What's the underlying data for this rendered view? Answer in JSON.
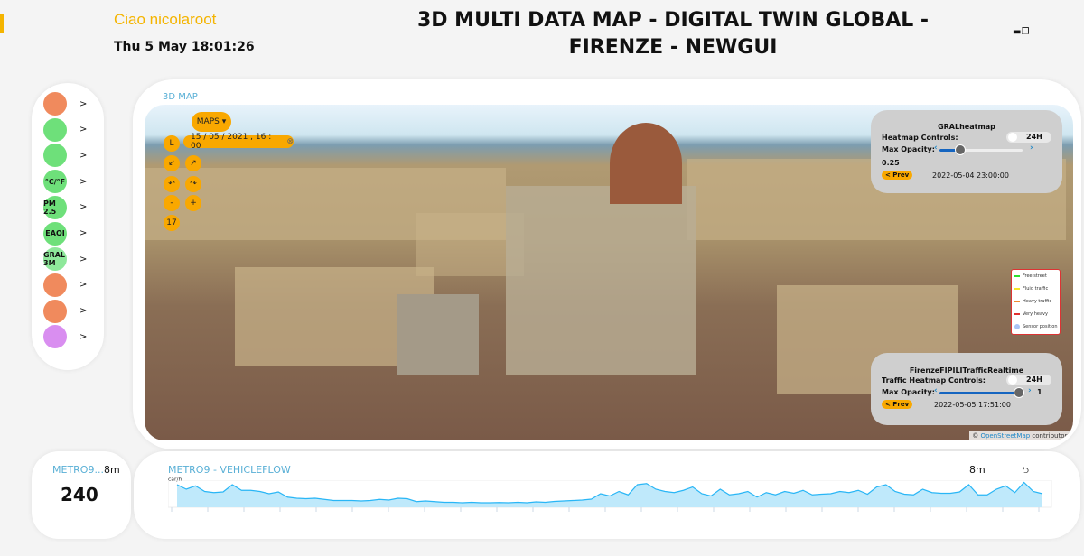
{
  "header": {
    "greeting": "Ciao nicolaroot",
    "datetime": "Thu 5 May 18:01:26",
    "title": "3D MULTI DATA MAP - DIGITAL TWIN GLOBAL - FIRENZE - NEWGUI",
    "window_icons": [
      "window-icon",
      "restore-icon"
    ]
  },
  "sidebar": {
    "items": [
      {
        "icon": "traffic-sensor-icon",
        "color": "#f08a5d",
        "label": ""
      },
      {
        "icon": "weather-station-icon",
        "color": "#6ee07a",
        "label": ""
      },
      {
        "icon": "wind-anemometer-icon",
        "color": "#6ee07a",
        "label": ""
      },
      {
        "icon": "temperature-grid-icon",
        "color": "#6ee07a",
        "label": "°C/°F"
      },
      {
        "icon": "pm25-grid-icon",
        "color": "#6ee07a",
        "label": "PM 2.5"
      },
      {
        "icon": "eaqi-grid-icon",
        "color": "#6ee07a",
        "label": "EAQI"
      },
      {
        "icon": "gral-grid-icon",
        "color": "#8ee89a",
        "label": "GRAL 3M"
      },
      {
        "icon": "road-traffic-icon",
        "color": "#f08a5d",
        "label": ""
      },
      {
        "icon": "road-icon",
        "color": "#f08a5d",
        "label": ""
      },
      {
        "icon": "bike-icon",
        "color": "#d98ef0",
        "label": ""
      }
    ],
    "arrow": ">"
  },
  "map": {
    "label": "3D MAP",
    "maps_button": "MAPS ▾",
    "date_value": "15 / 05 / 2021 , 16 : 00",
    "controls": [
      "L",
      "↙",
      "↗",
      "↶",
      "↷",
      "-",
      "+",
      "17"
    ],
    "gral": {
      "title": "GRALheatmap",
      "controls_label": "Heatmap Controls:",
      "toggle": "24H",
      "opacity_label": "Max Opacity:",
      "opacity": 0.25,
      "opacity_text": "0.25",
      "prev": "< Prev",
      "timestamp": "2022-05-04 23:00:00"
    },
    "traffic": {
      "title": "FirenzeFIPILITrafficRealtime",
      "controls_label": "Traffic Heatmap Controls:",
      "toggle": "24H",
      "opacity_label": "Max Opacity:",
      "opacity": 1,
      "opacity_text": "1",
      "prev": "< Prev",
      "timestamp": "2022-05-05 17:51:00"
    },
    "legend": [
      {
        "label": "Free street",
        "color": "#2ee02e"
      },
      {
        "label": "Fluid traffic",
        "color": "#f5e72a"
      },
      {
        "label": "Heavy traffic",
        "color": "#f08a30"
      },
      {
        "label": "Very heavy",
        "color": "#e03030"
      },
      {
        "label": "Sensor position",
        "color": "#aac4f5"
      }
    ],
    "attribution_prefix": "© ",
    "attribution_link": "OpenStreetMap",
    "attribution_suffix": " contributors"
  },
  "card": {
    "title": "METRO9...",
    "range": "8m",
    "value": "240"
  },
  "chart": {
    "title": "METRO9 - VEHICLEFLOW",
    "unit": "car/h",
    "range": "8m",
    "back_icon": "back-arrow-icon",
    "accent": "#29b6f6"
  },
  "chart_data": {
    "type": "area",
    "ylabel": "car/h",
    "values": [
      300,
      280,
      295,
      270,
      265,
      268,
      300,
      275,
      275,
      270,
      260,
      268,
      245,
      240,
      238,
      240,
      235,
      230,
      230,
      230,
      228,
      230,
      235,
      232,
      240,
      238,
      225,
      228,
      225,
      222,
      222,
      220,
      222,
      220,
      220,
      221,
      220,
      222,
      220,
      224,
      222,
      226,
      228,
      230,
      232,
      236,
      260,
      250,
      270,
      255,
      300,
      305,
      280,
      270,
      265,
      275,
      290,
      260,
      250,
      280,
      255,
      260,
      270,
      245,
      265,
      255,
      270,
      262,
      275,
      255,
      258,
      260,
      270,
      265,
      275,
      258,
      290,
      300,
      270,
      258,
      255,
      280,
      265,
      262,
      262,
      268,
      300,
      255,
      255,
      280,
      295,
      265,
      310,
      270,
      260
    ]
  }
}
